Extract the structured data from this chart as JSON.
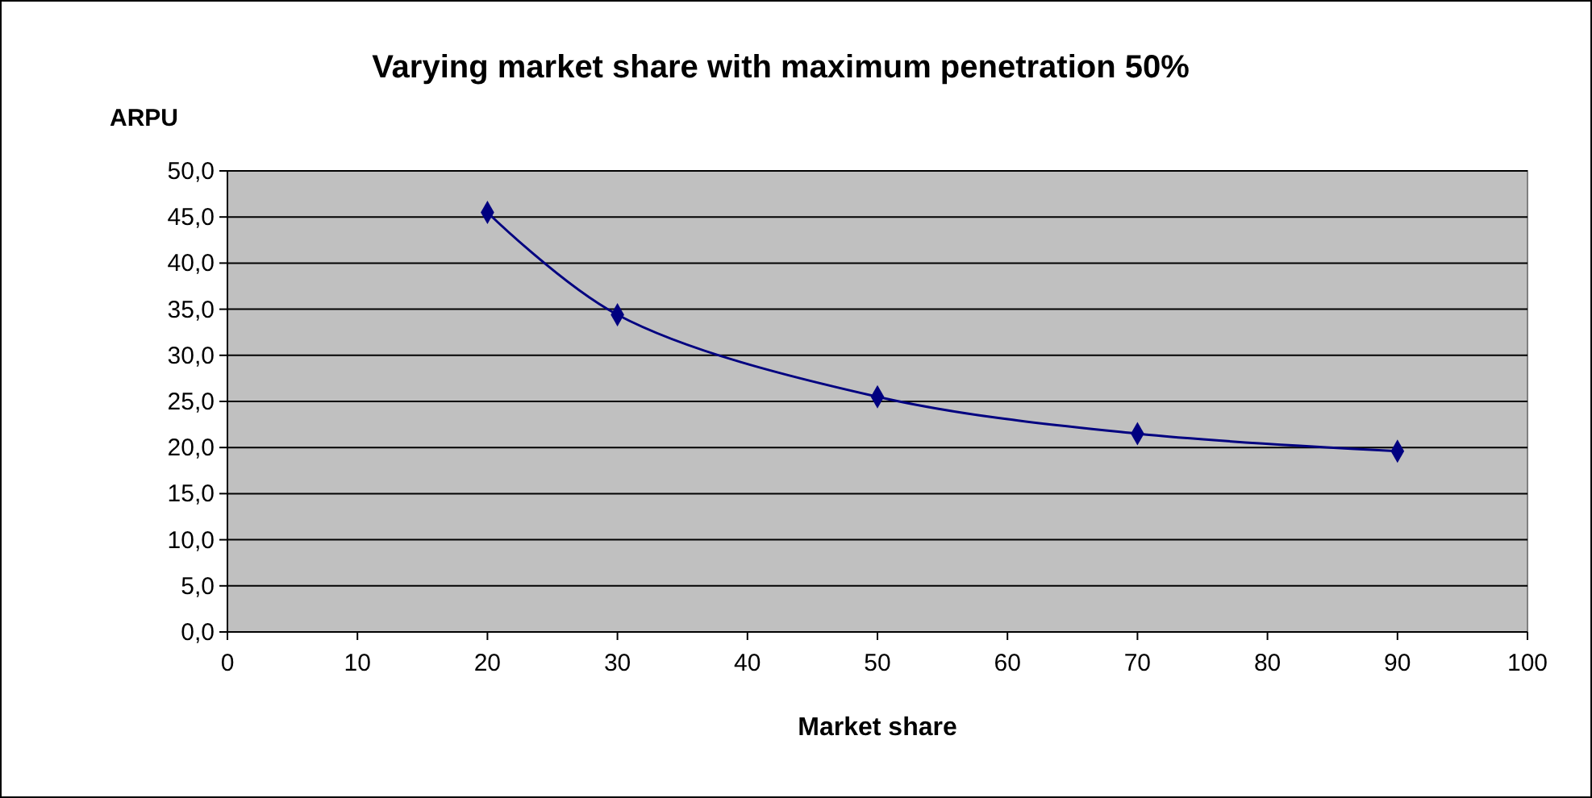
{
  "chart_data": {
    "type": "line",
    "title": "Varying market share with maximum penetration 50%",
    "xlabel": "Market share",
    "ylabel": "ARPU",
    "x": [
      20,
      30,
      50,
      70,
      90
    ],
    "series": [
      {
        "color": "#000080",
        "values": [
          45.5,
          34.4,
          25.5,
          21.5,
          19.6
        ]
      }
    ],
    "xlim": [
      0,
      100
    ],
    "xticks": [
      0,
      10,
      20,
      30,
      40,
      50,
      60,
      70,
      80,
      90,
      100
    ],
    "ylim": [
      0,
      50
    ],
    "yticks": [
      {
        "value": 0,
        "label": "0,0"
      },
      {
        "value": 5,
        "label": "5,0"
      },
      {
        "value": 10,
        "label": "10,0"
      },
      {
        "value": 15,
        "label": "15,0"
      },
      {
        "value": 20,
        "label": "20,0"
      },
      {
        "value": 25,
        "label": "25,0"
      },
      {
        "value": 30,
        "label": "30,0"
      },
      {
        "value": 35,
        "label": "35,0"
      },
      {
        "value": 40,
        "label": "40,0"
      },
      {
        "value": 45,
        "label": "45,0"
      },
      {
        "value": 50,
        "label": "50,0"
      }
    ],
    "grid": "y",
    "marker": "diamond",
    "line_style": "solid"
  }
}
